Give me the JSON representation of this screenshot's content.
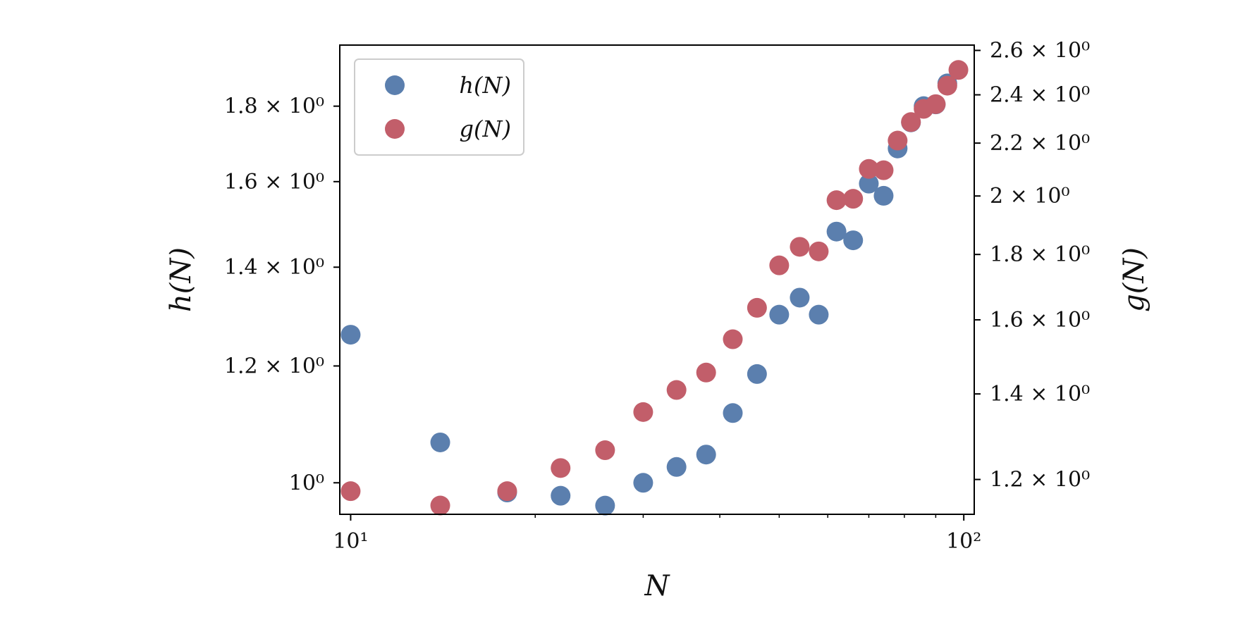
{
  "chart_data": {
    "type": "scatter",
    "title": "",
    "xlabel": "N",
    "ylabel": "h(N)",
    "y2label": "g(N)",
    "xscale": "log",
    "yscale": "log",
    "y2scale": "log",
    "xlim": [
      9.6,
      104
    ],
    "ylim": [
      0.952,
      1.98
    ],
    "y2lim": [
      1.127,
      2.625
    ],
    "grid": false,
    "legend_position": "top-left",
    "x_ticks": [
      {
        "value": 10,
        "label": "10¹"
      },
      {
        "value": 100,
        "label": "10²"
      }
    ],
    "y_ticks": [
      {
        "value": 1.0,
        "label": "10⁰"
      },
      {
        "value": 1.2,
        "label": "1.2 × 10⁰"
      },
      {
        "value": 1.4,
        "label": "1.4 × 10⁰"
      },
      {
        "value": 1.6,
        "label": "1.6 × 10⁰"
      },
      {
        "value": 1.8,
        "label": "1.8 × 10⁰"
      }
    ],
    "y2_ticks": [
      {
        "value": 1.2,
        "label": "1.2 × 10⁰"
      },
      {
        "value": 1.4,
        "label": "1.4 × 10⁰"
      },
      {
        "value": 1.6,
        "label": "1.6 × 10⁰"
      },
      {
        "value": 1.8,
        "label": "1.8 × 10⁰"
      },
      {
        "value": 2.0,
        "label": "2 × 10⁰"
      },
      {
        "value": 2.2,
        "label": "2.2 × 10⁰"
      },
      {
        "value": 2.4,
        "label": "2.4 × 10⁰"
      },
      {
        "value": 2.6,
        "label": "2.6 × 10⁰"
      }
    ],
    "series": [
      {
        "name": "h(N)",
        "axis": "left",
        "color": "#5b7fae",
        "x": [
          10,
          14,
          18,
          22,
          26,
          30,
          34,
          38,
          42,
          46,
          50,
          54,
          58,
          62,
          66,
          70,
          74,
          78,
          82,
          86,
          90,
          94
        ],
        "y": [
          1.26,
          1.065,
          0.985,
          0.98,
          0.965,
          1.0,
          1.025,
          1.045,
          1.115,
          1.185,
          1.3,
          1.335,
          1.3,
          1.48,
          1.46,
          1.595,
          1.565,
          1.685,
          1.755,
          1.8,
          1.805,
          1.865
        ]
      },
      {
        "name": "g(N)",
        "axis": "right",
        "color": "#c25e6a",
        "x": [
          10,
          14,
          18,
          22,
          26,
          30,
          34,
          38,
          42,
          46,
          50,
          54,
          58,
          62,
          66,
          70,
          74,
          78,
          82,
          86,
          90,
          94,
          98
        ],
        "y": [
          1.175,
          1.145,
          1.175,
          1.225,
          1.265,
          1.355,
          1.41,
          1.455,
          1.545,
          1.635,
          1.765,
          1.825,
          1.81,
          1.985,
          1.99,
          2.1,
          2.095,
          2.21,
          2.285,
          2.34,
          2.36,
          2.44,
          2.51
        ]
      }
    ]
  }
}
